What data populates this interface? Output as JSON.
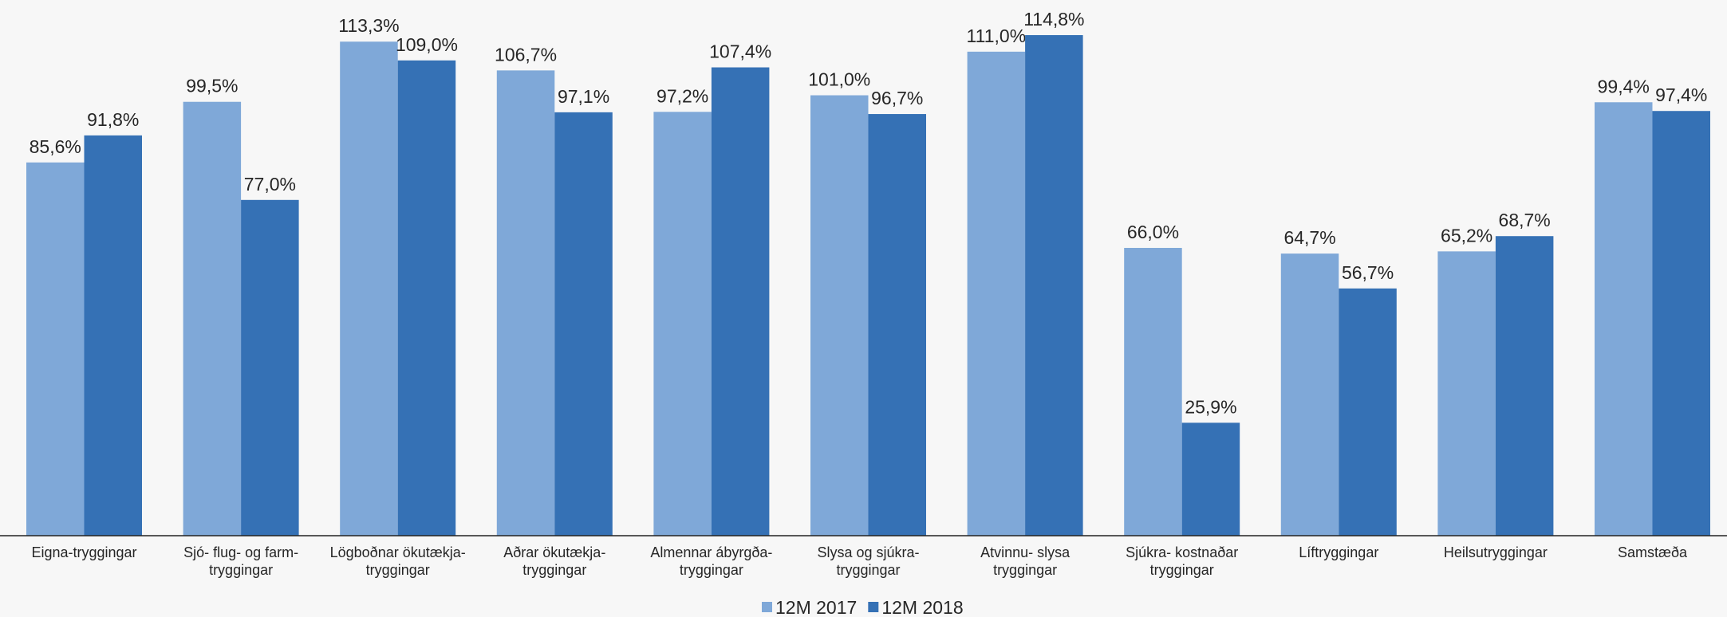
{
  "chart_data": {
    "type": "bar",
    "categories": [
      [
        "Eigna-tryggingar"
      ],
      [
        "Sjó- flug- og farm-",
        "tryggingar"
      ],
      [
        "Lögboðnar ökutækja-",
        "tryggingar"
      ],
      [
        "Aðrar ökutækja-",
        "tryggingar"
      ],
      [
        "Almennar ábyrgða-",
        "tryggingar"
      ],
      [
        "Slysa og sjúkra-",
        "tryggingar"
      ],
      [
        "Atvinnu- slysa",
        "tryggingar"
      ],
      [
        "Sjúkra- kostnaðar",
        "tryggingar"
      ],
      [
        "Líftryggingar"
      ],
      [
        "Heilsutryggingar"
      ],
      [
        "Samstæða"
      ]
    ],
    "series": [
      {
        "name": "12M 2017",
        "color": "#7fa8d8",
        "values": [
          85.6,
          99.5,
          113.3,
          106.7,
          97.2,
          101.0,
          111.0,
          66.0,
          64.7,
          65.2,
          99.4
        ],
        "value_labels": [
          "85,6%",
          "99,5%",
          "113,3%",
          "106,7%",
          "97,2%",
          "101,0%",
          "111,0%",
          "66,0%",
          "64,7%",
          "65,2%",
          "99,4%"
        ]
      },
      {
        "name": "12M 2018",
        "color": "#3571b5",
        "values": [
          91.8,
          77.0,
          109.0,
          97.1,
          107.4,
          96.7,
          114.8,
          25.9,
          56.7,
          68.7,
          97.4
        ],
        "value_labels": [
          "91,8%",
          "77,0%",
          "109,0%",
          "97,1%",
          "107,4%",
          "96,7%",
          "114,8%",
          "25,9%",
          "56,7%",
          "68,7%",
          "97,4%"
        ]
      }
    ],
    "legend": "bottom"
  }
}
